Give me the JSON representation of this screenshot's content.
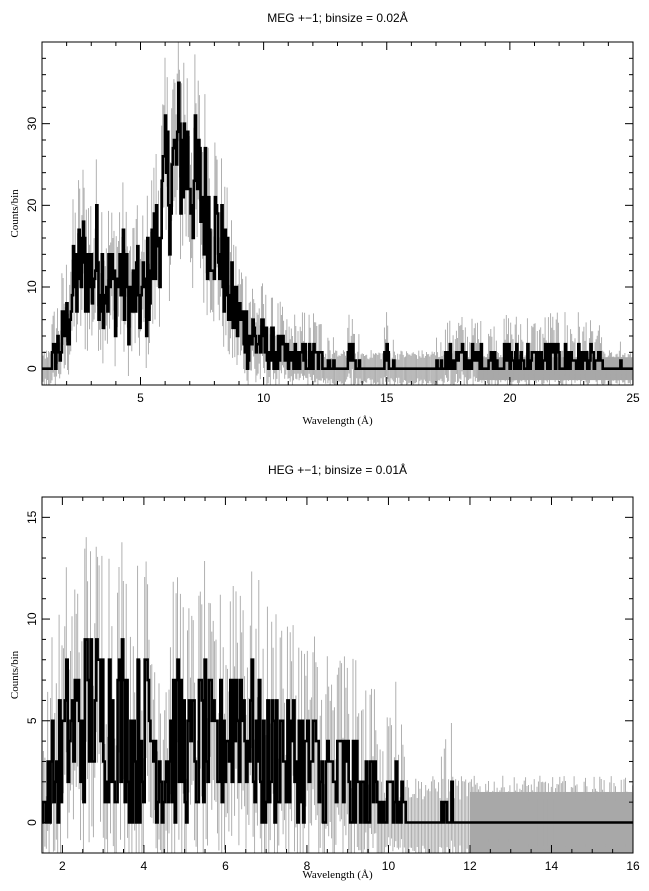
{
  "chart_data": [
    {
      "type": "line",
      "title": "MEG +−1; binsize = 0.02Å",
      "xlabel": "Wavelength (Å)",
      "ylabel": "Counts/bin",
      "xlim": [
        1.0,
        25.0
      ],
      "ylim": [
        -2.0,
        40.0
      ],
      "xticks": [
        5,
        10,
        15,
        20,
        25
      ],
      "yticks": [
        0,
        10,
        20,
        30
      ],
      "x_tick_labels": [
        "5",
        "10",
        "15",
        "20",
        "25"
      ],
      "y_tick_labels": [
        "0",
        "10",
        "20",
        "30"
      ],
      "error_band_halfwidth_tail": 1.4,
      "series": [
        {
          "style": "histogram",
          "color": "#000000",
          "error_color": "#a8a8a8",
          "x": [
            1.2,
            1.6,
            2.0,
            2.2,
            2.5,
            2.7,
            3.0,
            3.2,
            3.4,
            3.6,
            3.8,
            4.0,
            4.2,
            4.4,
            4.6,
            4.8,
            5.0,
            5.2,
            5.4,
            5.6,
            5.8,
            6.0,
            6.2,
            6.4,
            6.6,
            6.8,
            7.0,
            7.2,
            7.4,
            7.6,
            7.8,
            8.0,
            8.2,
            8.4,
            8.6,
            8.8,
            9.0,
            9.2,
            9.4,
            9.6,
            9.8,
            10.0,
            10.3,
            10.6,
            11.0,
            11.4,
            11.8,
            12.2,
            12.6,
            13.0,
            13.5,
            14.0,
            14.5,
            15.0,
            15.5,
            16.0,
            16.5,
            17.8,
            18.2,
            18.6,
            19.0,
            19.4,
            19.8,
            20.2,
            22.8,
            25.0
          ],
          "y": [
            0,
            2,
            5,
            9,
            12,
            13,
            11,
            14,
            12,
            11,
            10,
            10,
            12,
            9,
            8,
            10,
            8,
            9,
            12,
            15,
            19,
            22,
            24,
            25,
            27,
            26,
            24,
            22,
            22,
            20,
            19,
            17,
            15,
            12,
            9,
            7,
            6,
            5,
            4,
            4,
            3,
            3,
            2,
            2,
            1,
            1,
            1,
            1,
            1,
            0,
            1,
            0,
            0,
            1,
            0,
            0,
            0,
            1,
            1,
            1,
            1,
            1,
            1,
            1,
            1,
            0
          ]
        }
      ]
    },
    {
      "type": "line",
      "title": "HEG +−1; binsize = 0.01Å",
      "xlabel": "Wavelength (Å)",
      "ylabel": "Counts/bin",
      "xlim": [
        1.5,
        16.0
      ],
      "ylim": [
        -1.5,
        16.0
      ],
      "xticks": [
        2,
        4,
        6,
        8,
        10,
        12,
        14,
        16
      ],
      "yticks": [
        0,
        5,
        10,
        15
      ],
      "x_tick_labels": [
        "2",
        "4",
        "6",
        "8",
        "10",
        "12",
        "14",
        "16"
      ],
      "y_tick_labels": [
        "0",
        "5",
        "10",
        "15"
      ],
      "error_band_halfwidth_tail": 1.5,
      "series": [
        {
          "style": "histogram",
          "color": "#000000",
          "error_color": "#a8a8a8",
          "x": [
            1.5,
            1.7,
            1.9,
            2.1,
            2.3,
            2.5,
            2.7,
            2.9,
            3.1,
            3.3,
            3.5,
            3.7,
            3.9,
            4.1,
            4.3,
            4.5,
            4.7,
            4.9,
            5.1,
            5.3,
            5.5,
            5.7,
            5.9,
            6.1,
            6.3,
            6.5,
            6.7,
            6.9,
            7.1,
            7.3,
            7.5,
            7.7,
            7.9,
            8.1,
            8.3,
            8.5,
            8.7,
            8.9,
            9.1,
            9.3,
            9.5,
            9.7,
            9.9,
            10.1,
            10.3,
            10.6,
            11.0,
            11.4,
            11.8,
            12.2,
            12.8,
            13.5,
            14.5,
            16.0
          ],
          "y": [
            0,
            2,
            3,
            4,
            5,
            5,
            6,
            5,
            6,
            5,
            5,
            4,
            4,
            5,
            3,
            3,
            4,
            4,
            3,
            4,
            4,
            3,
            4,
            5,
            6,
            5,
            4,
            3,
            3,
            4,
            3,
            3,
            3,
            3,
            2,
            2,
            2,
            2,
            2,
            1,
            1,
            2,
            1,
            1,
            1,
            0,
            0,
            1,
            0,
            0,
            0,
            0,
            0,
            0
          ]
        }
      ]
    }
  ]
}
